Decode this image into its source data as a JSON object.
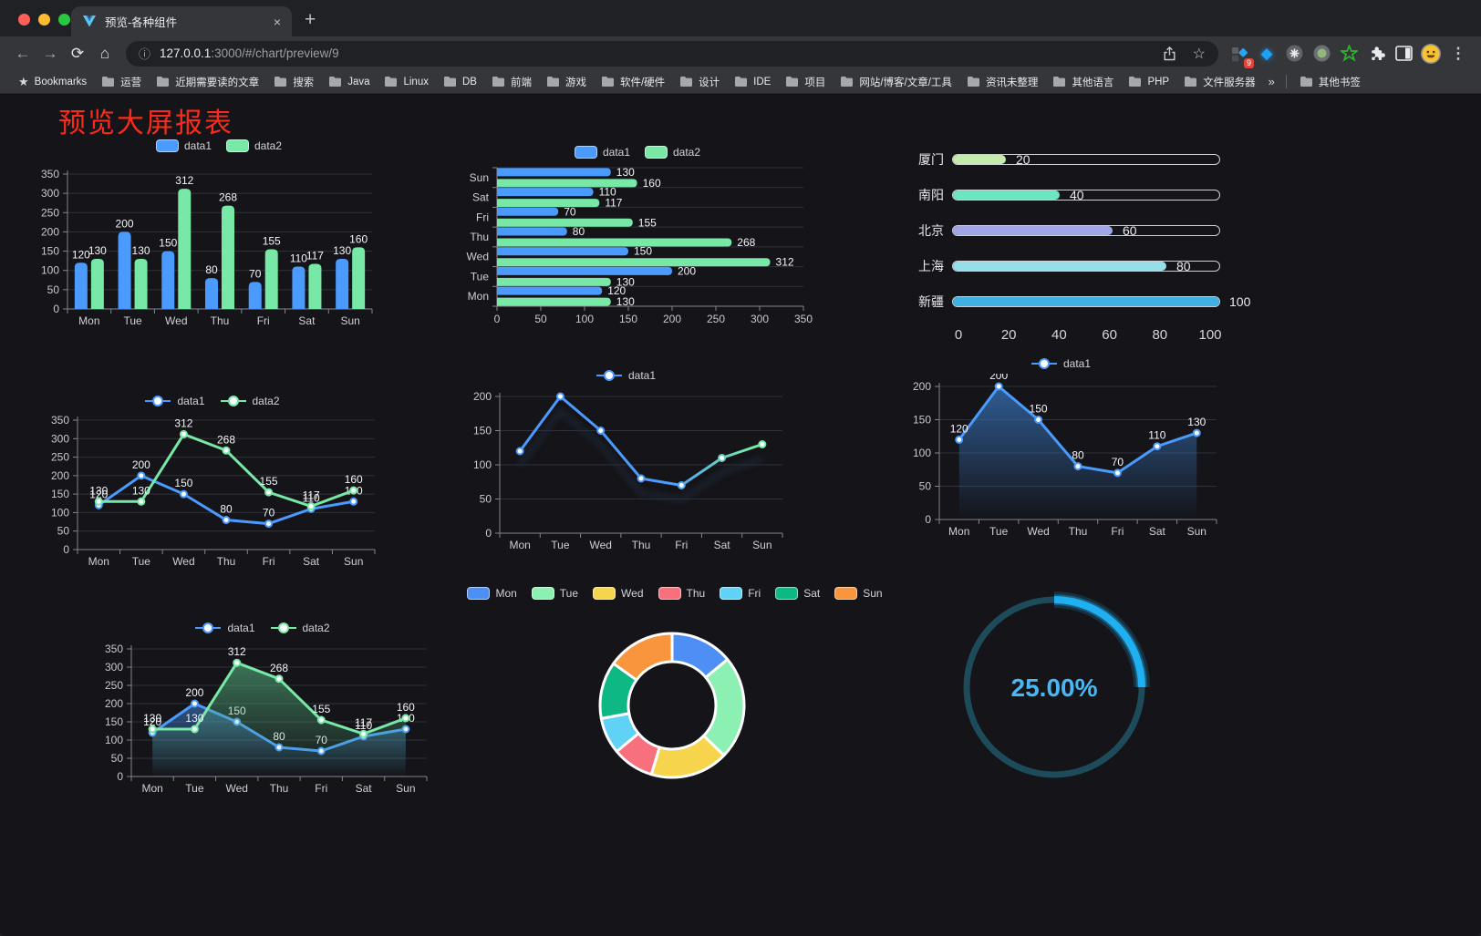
{
  "browser": {
    "tab_title": "预览-各种组件",
    "tab_close": "×",
    "new_tab": "+",
    "url_host": "127.0.0.1",
    "url_rest": ":3000/#/chart/preview/9",
    "glyphs": {
      "back": "←",
      "forward": "→",
      "reload": "⟳",
      "home": "⌂",
      "info": "ⓘ",
      "star": "☆",
      "kebab": "⋮",
      "gem": "◆",
      "bookmarks_star": "★"
    },
    "extensions_badge": "9",
    "bookmarks_label": "Bookmarks",
    "bookmarks": [
      "运营",
      "近期需要读的文章",
      "搜索",
      "Java",
      "Linux",
      "DB",
      "前端",
      "游戏",
      "软件/硬件",
      "设计",
      "IDE",
      "项目",
      "网站/博客/文章/工具",
      "资讯未整理",
      "其他语言",
      "PHP",
      "文件服务器"
    ],
    "bookmarks_overflow": "»",
    "other_bookmarks": "其他书签"
  },
  "page": {
    "title": "预览大屏报表",
    "title_color": "#fb2b1b"
  },
  "chart_data": [
    {
      "id": "bar1",
      "type": "bar",
      "legend": "pill",
      "labels": true,
      "categories": [
        "Mon",
        "Tue",
        "Wed",
        "Thu",
        "Fri",
        "Sat",
        "Sun"
      ],
      "series": [
        {
          "name": "data1",
          "color": "#4a9bfd",
          "values": [
            120,
            200,
            150,
            80,
            70,
            110,
            130
          ]
        },
        {
          "name": "data2",
          "color": "#78e8a6",
          "values": [
            130,
            130,
            312,
            268,
            155,
            117,
            160
          ]
        }
      ],
      "ylim": [
        0,
        350
      ],
      "yticks": [
        0,
        50,
        100,
        150,
        200,
        250,
        300,
        350
      ]
    },
    {
      "id": "hbar1",
      "type": "hbar",
      "legend": "pill",
      "labels": true,
      "categories_top_to_bottom": [
        "Sun",
        "Sat",
        "Fri",
        "Thu",
        "Wed",
        "Tue",
        "Mon"
      ],
      "series": [
        {
          "name": "data1",
          "color": "#4a9bfd",
          "values_top_to_bottom": [
            130,
            110,
            70,
            80,
            150,
            200,
            120
          ]
        },
        {
          "name": "data2",
          "color": "#78e8a6",
          "values_top_to_bottom": [
            160,
            117,
            155,
            268,
            312,
            130,
            130
          ]
        }
      ],
      "xlim": [
        0,
        350
      ],
      "xticks": [
        0,
        50,
        100,
        150,
        200,
        250,
        300,
        350
      ]
    },
    {
      "id": "progress1",
      "type": "progress",
      "rows": [
        {
          "label": "厦门",
          "value": 20,
          "color": "#c4ebad"
        },
        {
          "label": "南阳",
          "value": 40,
          "color": "#6be6c1"
        },
        {
          "label": "北京",
          "value": 60,
          "color": "#a0a7e6"
        },
        {
          "label": "上海",
          "value": 80,
          "color": "#96dee8"
        },
        {
          "label": "新疆",
          "value": 100,
          "color": "#3fb1e3"
        }
      ],
      "xlim": [
        0,
        100
      ],
      "xticks": [
        0,
        20,
        40,
        60,
        80,
        100
      ]
    },
    {
      "id": "line1",
      "type": "line",
      "legend": "line",
      "labels": true,
      "categories": [
        "Mon",
        "Tue",
        "Wed",
        "Thu",
        "Fri",
        "Sat",
        "Sun"
      ],
      "series": [
        {
          "name": "data1",
          "color": "#4a9bfd",
          "values": [
            120,
            200,
            150,
            80,
            70,
            110,
            130
          ]
        },
        {
          "name": "data2",
          "color": "#78e8a6",
          "values": [
            130,
            130,
            312,
            268,
            155,
            117,
            160
          ]
        }
      ],
      "ylim": [
        0,
        350
      ],
      "yticks": [
        0,
        50,
        100,
        150,
        200,
        250,
        300,
        350
      ]
    },
    {
      "id": "line2",
      "type": "line",
      "legend": "line",
      "labels": false,
      "categories": [
        "Mon",
        "Tue",
        "Wed",
        "Thu",
        "Fri",
        "Sat",
        "Sun"
      ],
      "series": [
        {
          "name": "data1",
          "color": "#4a9bfd",
          "gradient": [
            "#4a9bfd",
            "#78e8a6"
          ],
          "shadow": true,
          "values": [
            120,
            200,
            150,
            80,
            70,
            110,
            130
          ]
        }
      ],
      "ylim": [
        0,
        200
      ],
      "yticks": [
        0,
        50,
        100,
        150,
        200
      ]
    },
    {
      "id": "line3",
      "type": "line",
      "legend": "line",
      "labels": true,
      "categories": [
        "Mon",
        "Tue",
        "Wed",
        "Thu",
        "Fri",
        "Sat",
        "Sun"
      ],
      "series": [
        {
          "name": "data1",
          "color": "#4a9bfd",
          "area": [
            "rgba(52,105,168,0.85)",
            "rgba(52,105,168,0)"
          ],
          "values": [
            120,
            200,
            150,
            80,
            70,
            110,
            130
          ]
        }
      ],
      "ylim": [
        0,
        200
      ],
      "yticks": [
        0,
        50,
        100,
        150,
        200
      ]
    },
    {
      "id": "line4",
      "type": "line",
      "legend": "line",
      "labels": true,
      "categories": [
        "Mon",
        "Tue",
        "Wed",
        "Thu",
        "Fri",
        "Sat",
        "Sun"
      ],
      "series": [
        {
          "name": "data1",
          "color": "#4a9bfd",
          "area": [
            "rgba(68,135,220,0.55)",
            "rgba(68,135,220,0)"
          ],
          "values": [
            120,
            200,
            150,
            80,
            70,
            110,
            130
          ]
        },
        {
          "name": "data2",
          "color": "#78e8a6",
          "area": [
            "rgba(86,180,128,0.6)",
            "rgba(86,180,128,0)"
          ],
          "values": [
            130,
            130,
            312,
            268,
            155,
            117,
            160
          ]
        }
      ],
      "ylim": [
        0,
        350
      ],
      "yticks": [
        0,
        50,
        100,
        150,
        200,
        250,
        300,
        350
      ]
    },
    {
      "id": "pie1",
      "type": "pie",
      "legend": "pill",
      "items": [
        {
          "label": "Mon",
          "value": 120,
          "color": "#4e8ff6"
        },
        {
          "label": "Tue",
          "value": 200,
          "color": "#8cf0b2"
        },
        {
          "label": "Wed",
          "value": 150,
          "color": "#f6d44c"
        },
        {
          "label": "Thu",
          "value": 80,
          "color": "#f8707e"
        },
        {
          "label": "Fri",
          "value": 70,
          "color": "#5fd2f6"
        },
        {
          "label": "Sat",
          "value": 110,
          "color": "#0eb884"
        },
        {
          "label": "Sun",
          "value": 130,
          "color": "#f9953c"
        }
      ]
    },
    {
      "id": "gauge1",
      "type": "gauge",
      "value": 25,
      "label": "25.00%",
      "track_color": "#1d4b59",
      "arc_color": "#1fb0f2",
      "text_color": "#47b8f3"
    }
  ]
}
